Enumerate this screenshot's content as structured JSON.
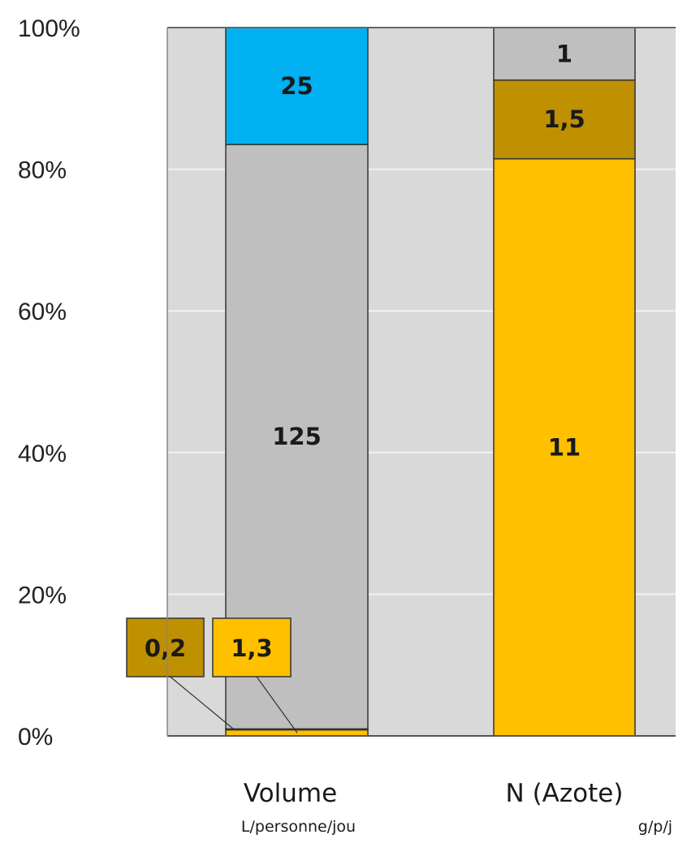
{
  "chart_data": {
    "type": "bar",
    "stacked": "percent",
    "categories": [
      "Volume",
      "N (Azote)"
    ],
    "category_units": [
      "L/personne/jou",
      "g/p/j"
    ],
    "y_ticks": [
      "0%",
      "20%",
      "40%",
      "60%",
      "80%",
      "100%"
    ],
    "ylim": [
      0,
      100
    ],
    "grid": true,
    "series_stacks": [
      [
        {
          "value": 1.3,
          "label": "1,3",
          "color": "#ffc000",
          "callout": true
        },
        {
          "value": 0.2,
          "label": "0,2",
          "color": "#bf9000",
          "callout": true
        },
        {
          "value": 125,
          "label": "125",
          "color": "#bfbfbf"
        },
        {
          "value": 25,
          "label": "25",
          "color": "#00b0f0"
        }
      ],
      [
        {
          "value": 11,
          "label": "11",
          "color": "#ffc000"
        },
        {
          "value": 1.5,
          "label": "1,5",
          "color": "#bf9000"
        },
        {
          "value": 1,
          "label": "1",
          "color": "#bfbfbf"
        }
      ]
    ],
    "colors": {
      "plot_background": "#d9d9d9",
      "gridline": "#f2f2f2",
      "urine": "#ffc000",
      "feces": "#bf9000",
      "grey": "#bfbfbf",
      "blue": "#00b0f0"
    }
  }
}
